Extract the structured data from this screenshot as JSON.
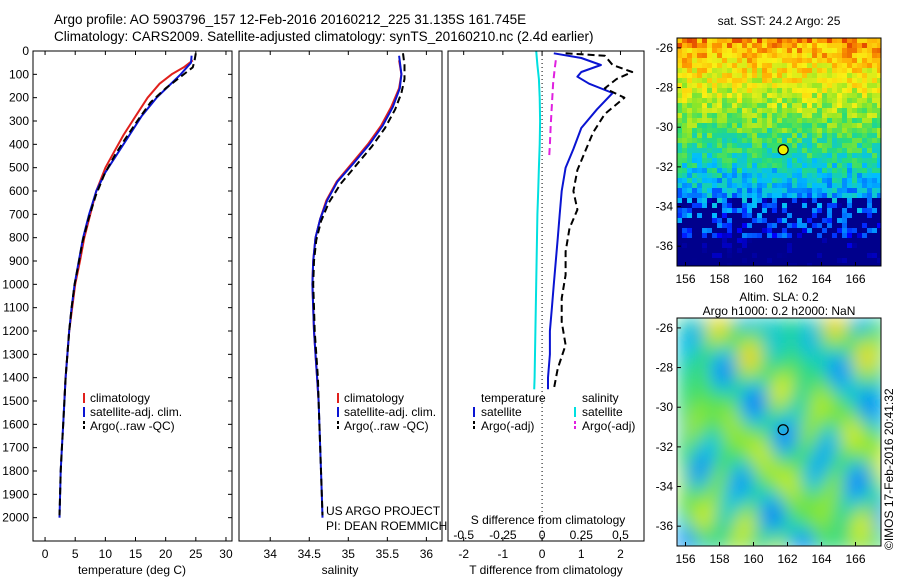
{
  "header": {
    "line1": "Argo profile: AO 5903796_157 12-Feb-2016 20160212_225 31.135S 161.745E",
    "line2": "Climatology: CARS2009. Satellite-adjusted climatology: synTS_20160210.nc (2.4d earlier)"
  },
  "watermark": "©IMOS 17-Feb-2016 20:41:32",
  "credit": {
    "line1": "US ARGO PROJECT",
    "line2": "PI: DEAN ROEMMICH"
  },
  "colors": {
    "climatology": "#e0201c",
    "satellite": "#0a14d2",
    "argo": "#000000",
    "sal_satellite": "#00e0e0",
    "sal_argo": "#e020e0"
  },
  "chart_data": [
    {
      "type": "line",
      "xlabel": "temperature (deg C)",
      "xlim": [
        -2,
        31
      ],
      "ylim": [
        2100,
        0
      ],
      "xticks": [
        0,
        5,
        10,
        15,
        20,
        25,
        30
      ],
      "yticks": [
        0,
        100,
        200,
        300,
        400,
        500,
        600,
        700,
        800,
        900,
        1000,
        1100,
        1200,
        1300,
        1400,
        1500,
        1600,
        1700,
        1800,
        1900,
        2000
      ],
      "legend": [
        "climatology",
        "satellite-adj. clim.",
        "Argo(..raw -QC)"
      ],
      "legend_position": "lower-right",
      "series": [
        {
          "name": "climatology",
          "color": "#e0201c",
          "dash": false,
          "points": [
            [
              24.5,
              40
            ],
            [
              23,
              70
            ],
            [
              21,
              100
            ],
            [
              19,
              140
            ],
            [
              17,
              200
            ],
            [
              15,
              280
            ],
            [
              13,
              360
            ],
            [
              11.5,
              430
            ],
            [
              10,
              500
            ],
            [
              8.5,
              600
            ],
            [
              7.5,
              700
            ],
            [
              6.5,
              800
            ],
            [
              5.8,
              900
            ],
            [
              5,
              1000
            ],
            [
              4.5,
              1100
            ],
            [
              4,
              1200
            ],
            [
              3.7,
              1300
            ],
            [
              3.4,
              1400
            ],
            [
              3.2,
              1500
            ]
          ]
        },
        {
          "name": "satellite-adj. clim.",
          "color": "#0a14d2",
          "dash": false,
          "points": [
            [
              24.3,
              20
            ],
            [
              24.2,
              50
            ],
            [
              22.5,
              100
            ],
            [
              20.5,
              150
            ],
            [
              18.5,
              200
            ],
            [
              16,
              280
            ],
            [
              14,
              360
            ],
            [
              12,
              440
            ],
            [
              10,
              520
            ],
            [
              8.5,
              600
            ],
            [
              7.3,
              700
            ],
            [
              6.3,
              800
            ],
            [
              5.6,
              900
            ],
            [
              4.9,
              1000
            ],
            [
              4.4,
              1100
            ],
            [
              4,
              1200
            ],
            [
              3.7,
              1300
            ],
            [
              3.4,
              1400
            ],
            [
              3.2,
              1500
            ],
            [
              3,
              1600
            ],
            [
              2.8,
              1700
            ],
            [
              2.6,
              1800
            ],
            [
              2.5,
              1900
            ],
            [
              2.4,
              2000
            ]
          ]
        },
        {
          "name": "Argo(..raw -QC)",
          "color": "#000000",
          "dash": true,
          "points": [
            [
              25,
              10
            ],
            [
              24.8,
              40
            ],
            [
              24.5,
              70
            ],
            [
              22.5,
              110
            ],
            [
              20,
              160
            ],
            [
              17.5,
              220
            ],
            [
              15.3,
              300
            ],
            [
              13.2,
              380
            ],
            [
              11.5,
              450
            ],
            [
              9.8,
              530
            ],
            [
              8.4,
              620
            ],
            [
              7.2,
              720
            ],
            [
              6.2,
              820
            ],
            [
              5.5,
              920
            ],
            [
              4.9,
              1000
            ],
            [
              4.4,
              1100
            ],
            [
              4,
              1200
            ],
            [
              3.7,
              1300
            ],
            [
              3.4,
              1400
            ],
            [
              3.2,
              1500
            ],
            [
              3,
              1600
            ],
            [
              2.8,
              1700
            ],
            [
              2.6,
              1800
            ],
            [
              2.5,
              1900
            ],
            [
              2.4,
              1990
            ]
          ]
        }
      ]
    },
    {
      "type": "line",
      "xlabel": "salinity",
      "xlim": [
        33.6,
        36.2
      ],
      "ylim": [
        2100,
        0
      ],
      "xticks": [
        34,
        34.5,
        35,
        35.5,
        36
      ],
      "legend": [
        "climatology",
        "satellite-adj. clim.",
        "Argo(..raw -QC)"
      ],
      "legend_position": "lower-right",
      "series": [
        {
          "name": "climatology",
          "color": "#e0201c",
          "dash": false,
          "points": [
            [
              35.65,
              40
            ],
            [
              35.68,
              100
            ],
            [
              35.65,
              160
            ],
            [
              35.55,
              240
            ],
            [
              35.42,
              320
            ],
            [
              35.25,
              400
            ],
            [
              35.05,
              480
            ],
            [
              34.85,
              560
            ],
            [
              34.72,
              640
            ],
            [
              34.64,
              720
            ],
            [
              34.58,
              800
            ],
            [
              34.55,
              900
            ],
            [
              34.54,
              1000
            ],
            [
              34.55,
              1100
            ],
            [
              34.56,
              1200
            ],
            [
              34.58,
              1300
            ],
            [
              34.6,
              1400
            ],
            [
              34.62,
              1500
            ]
          ]
        },
        {
          "name": "satellite-adj. clim.",
          "color": "#0a14d2",
          "dash": false,
          "points": [
            [
              35.65,
              20
            ],
            [
              35.68,
              100
            ],
            [
              35.66,
              160
            ],
            [
              35.57,
              240
            ],
            [
              35.44,
              320
            ],
            [
              35.27,
              400
            ],
            [
              35.07,
              480
            ],
            [
              34.86,
              560
            ],
            [
              34.73,
              640
            ],
            [
              34.64,
              720
            ],
            [
              34.58,
              800
            ],
            [
              34.55,
              900
            ],
            [
              34.54,
              1000
            ],
            [
              34.55,
              1100
            ],
            [
              34.56,
              1200
            ],
            [
              34.58,
              1300
            ],
            [
              34.6,
              1400
            ],
            [
              34.62,
              1500
            ],
            [
              34.63,
              1600
            ],
            [
              34.64,
              1700
            ],
            [
              34.65,
              1800
            ],
            [
              34.66,
              1900
            ],
            [
              34.67,
              2000
            ]
          ]
        },
        {
          "name": "Argo(..raw -QC)",
          "color": "#000000",
          "dash": true,
          "points": [
            [
              35.7,
              10
            ],
            [
              35.72,
              60
            ],
            [
              35.72,
              120
            ],
            [
              35.68,
              180
            ],
            [
              35.6,
              250
            ],
            [
              35.47,
              330
            ],
            [
              35.3,
              410
            ],
            [
              35.1,
              490
            ],
            [
              34.9,
              570
            ],
            [
              34.75,
              650
            ],
            [
              34.65,
              730
            ],
            [
              34.59,
              810
            ],
            [
              34.56,
              900
            ],
            [
              34.55,
              1000
            ],
            [
              34.56,
              1100
            ],
            [
              34.57,
              1200
            ],
            [
              34.59,
              1300
            ],
            [
              34.61,
              1400
            ],
            [
              34.62,
              1500
            ],
            [
              34.63,
              1600
            ],
            [
              34.64,
              1700
            ],
            [
              34.65,
              1800
            ],
            [
              34.66,
              1900
            ],
            [
              34.67,
              1990
            ]
          ]
        }
      ]
    },
    {
      "type": "line",
      "xlabel": "T difference from climatology",
      "xlabel_top": "S difference from climatology",
      "xlim": [
        -2.4,
        2.6
      ],
      "ylim": [
        2100,
        0
      ],
      "xticks": [
        -2,
        -1,
        0,
        1,
        2
      ],
      "s_ticks": [
        -0.5,
        -0.25,
        0,
        0.25,
        0.5
      ],
      "legend_temperature": {
        "title": "temperature",
        "items": [
          "satellite",
          "Argo(-adj)"
        ]
      },
      "legend_salinity": {
        "title": "salinity",
        "items": [
          "satellite",
          "Argo(-adj)"
        ]
      },
      "series": [
        {
          "name": "temperature satellite",
          "color": "#0a14d2",
          "dash": false,
          "points": [
            [
              0.3,
              10
            ],
            [
              1.0,
              30
            ],
            [
              1.5,
              60
            ],
            [
              1.0,
              90
            ],
            [
              0.9,
              110
            ],
            [
              1.2,
              140
            ],
            [
              1.8,
              180
            ],
            [
              1.4,
              250
            ],
            [
              1.0,
              330
            ],
            [
              0.8,
              420
            ],
            [
              0.6,
              500
            ],
            [
              0.5,
              600
            ],
            [
              0.45,
              700
            ],
            [
              0.4,
              800
            ],
            [
              0.35,
              900
            ],
            [
              0.3,
              1000
            ],
            [
              0.25,
              1100
            ],
            [
              0.2,
              1200
            ],
            [
              0.2,
              1300
            ],
            [
              0.15,
              1400
            ],
            [
              0.15,
              1450
            ]
          ]
        },
        {
          "name": "temperature Argo(-adj)",
          "color": "#000000",
          "dash": true,
          "points": [
            [
              0.6,
              10
            ],
            [
              1.6,
              20
            ],
            [
              1.8,
              60
            ],
            [
              2.3,
              90
            ],
            [
              1.9,
              120
            ],
            [
              1.6,
              160
            ],
            [
              2.1,
              200
            ],
            [
              1.6,
              270
            ],
            [
              1.3,
              350
            ],
            [
              1.1,
              430
            ],
            [
              0.9,
              510
            ],
            [
              0.8,
              600
            ],
            [
              0.9,
              680
            ],
            [
              0.7,
              760
            ],
            [
              0.6,
              860
            ],
            [
              0.6,
              960
            ],
            [
              0.5,
              1060
            ],
            [
              0.5,
              1160
            ],
            [
              0.6,
              1260
            ],
            [
              0.4,
              1360
            ],
            [
              0.3,
              1450
            ]
          ]
        },
        {
          "name": "salinity satellite",
          "color": "#00e0e0",
          "dash": false,
          "points": [
            [
              -0.15,
              0
            ],
            [
              -0.12,
              60
            ],
            [
              -0.08,
              120
            ],
            [
              -0.06,
              200
            ],
            [
              -0.05,
              300
            ],
            [
              -0.06,
              400
            ],
            [
              -0.08,
              500
            ],
            [
              -0.1,
              600
            ],
            [
              -0.12,
              700
            ],
            [
              -0.13,
              800
            ],
            [
              -0.14,
              900
            ],
            [
              -0.15,
              1000
            ],
            [
              -0.16,
              1100
            ],
            [
              -0.17,
              1200
            ],
            [
              -0.18,
              1300
            ],
            [
              -0.19,
              1400
            ],
            [
              -0.2,
              1450
            ]
          ]
        },
        {
          "name": "salinity Argo(-adj)",
          "color": "#e020e0",
          "dash": true,
          "points": [
            [
              0.35,
              40
            ],
            [
              0.32,
              80
            ],
            [
              0.28,
              140
            ],
            [
              0.26,
              200
            ],
            [
              0.24,
              260
            ],
            [
              0.22,
              320
            ],
            [
              0.2,
              400
            ],
            [
              0.18,
              460
            ]
          ]
        }
      ]
    },
    {
      "type": "heatmap",
      "title": "sat. SST: 24.2 Argo: 25",
      "xlim": [
        155.5,
        167.5
      ],
      "ylim": [
        -37,
        -25.5
      ],
      "xticks": [
        156,
        158,
        160,
        162,
        164,
        166
      ],
      "yticks": [
        -26,
        -28,
        -30,
        -32,
        -34,
        -36
      ],
      "marker": {
        "lon": 161.745,
        "lat": -31.135
      }
    },
    {
      "type": "heatmap",
      "title": "Altim. SLA: 0.2",
      "subtitle": "Argo h1000: 0.2 h2000: NaN",
      "xlim": [
        155.5,
        167.5
      ],
      "ylim": [
        -37,
        -25.5
      ],
      "xticks": [
        156,
        158,
        160,
        162,
        164,
        166
      ],
      "yticks": [
        -26,
        -28,
        -30,
        -32,
        -34,
        -36
      ],
      "marker": {
        "lon": 161.745,
        "lat": -31.135
      }
    }
  ]
}
